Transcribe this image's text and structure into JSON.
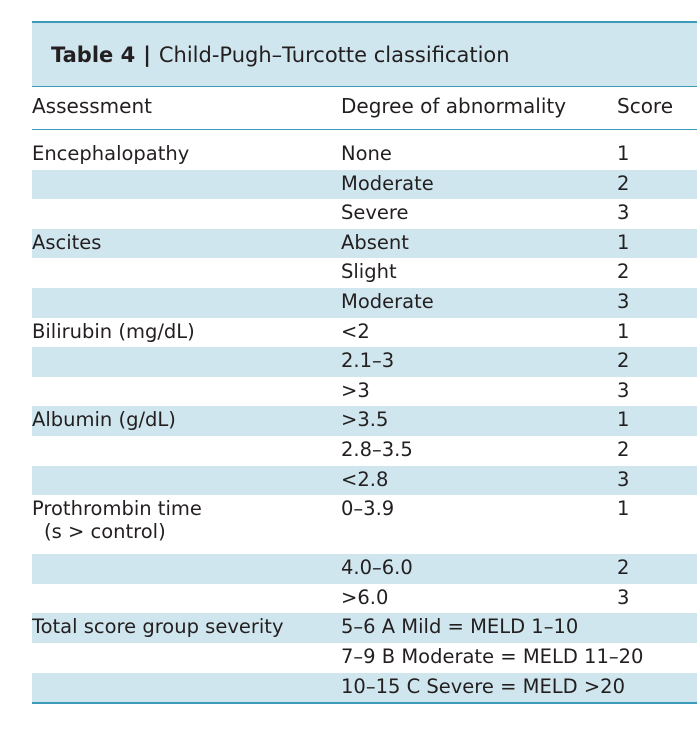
{
  "table": {
    "label": "Table 4",
    "separator": "|",
    "title": "Child-Pugh–Turcotte classification",
    "headers": [
      "Assessment",
      "Degree of abnormality",
      "Score"
    ],
    "rows": [
      {
        "assessment": "Encephalopathy",
        "degree": "None",
        "score": "1",
        "shaded": false
      },
      {
        "assessment": "",
        "degree": "Moderate",
        "score": "2",
        "shaded": true
      },
      {
        "assessment": "",
        "degree": "Severe",
        "score": "3",
        "shaded": false
      },
      {
        "assessment": "Ascites",
        "degree": "Absent",
        "score": "1",
        "shaded": true
      },
      {
        "assessment": "",
        "degree": "Slight",
        "score": "2",
        "shaded": false
      },
      {
        "assessment": "",
        "degree": "Moderate",
        "score": "3",
        "shaded": true
      },
      {
        "assessment": "Bilirubin (mg/dL)",
        "degree": "<2",
        "score": "1",
        "shaded": false
      },
      {
        "assessment": "",
        "degree": "2.1–3",
        "score": "2",
        "shaded": true
      },
      {
        "assessment": "",
        "degree": ">3",
        "score": "3",
        "shaded": false
      },
      {
        "assessment": "Albumin (g/dL)",
        "degree": ">3.5",
        "score": "1",
        "shaded": true
      },
      {
        "assessment": "",
        "degree": "2.8–3.5",
        "score": "2",
        "shaded": false
      },
      {
        "assessment": "",
        "degree": "<2.8",
        "score": "3",
        "shaded": true
      },
      {
        "assessment": "Prothrombin time",
        "assessment_line2": "(s > control)",
        "degree": "0–3.9",
        "score": "1",
        "shaded": false
      },
      {
        "assessment": "",
        "degree": "4.0–6.0",
        "score": "2",
        "shaded": true
      },
      {
        "assessment": "",
        "degree": ">6.0",
        "score": "3",
        "shaded": false
      },
      {
        "assessment": "Total score group severity",
        "degree": "5–6 A Mild = MELD 1–10",
        "score": "",
        "shaded": true
      },
      {
        "assessment": "",
        "degree": "7–9 B Moderate = MELD 11–20",
        "score": "",
        "shaded": false
      },
      {
        "assessment": "",
        "degree": "10–15 C Severe = MELD >20",
        "score": "",
        "shaded": true
      }
    ]
  },
  "colors": {
    "shade": "#cfe6ee",
    "rule": "#3c9bb8",
    "text": "#231f20"
  }
}
